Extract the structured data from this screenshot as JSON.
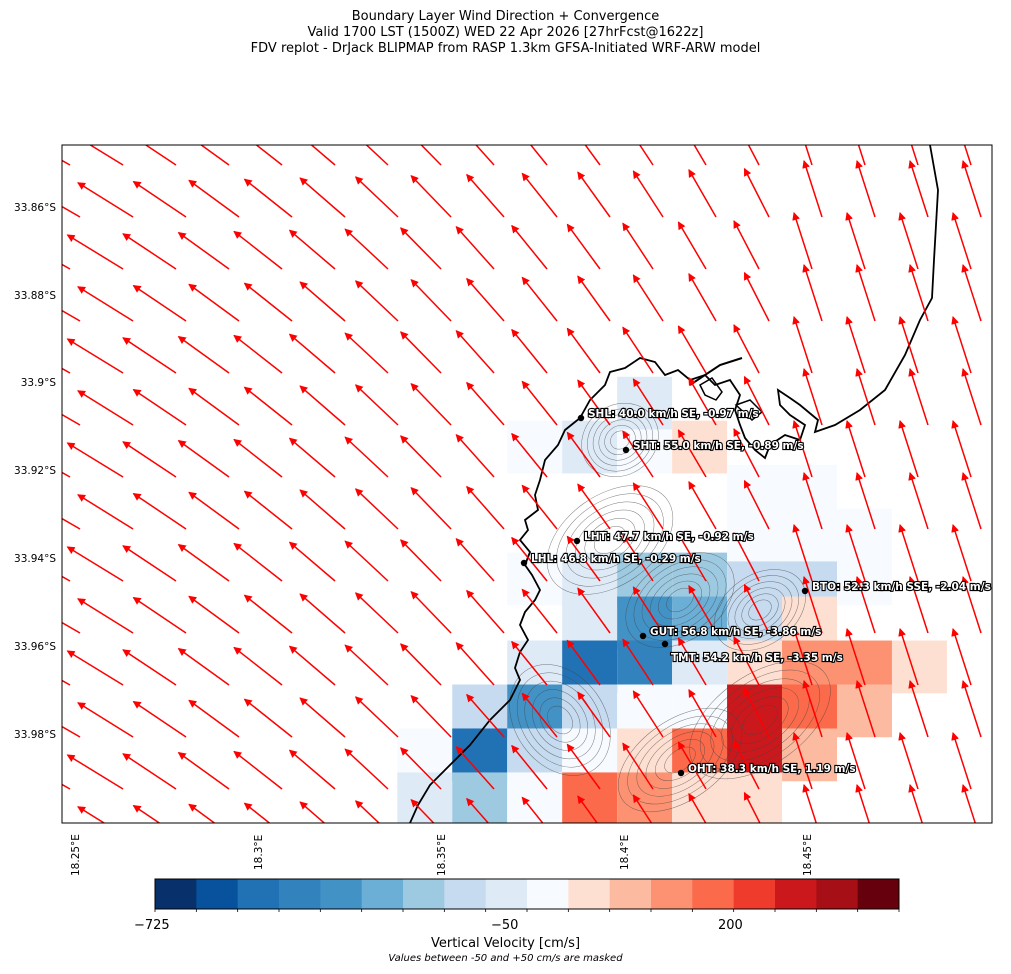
{
  "title": {
    "line1": "Boundary Layer Wind Direction + Convergence",
    "line2": "Valid 1700 LST (1500Z) WED 22 Apr 2026 [27hrFcst@1622z]",
    "line3": "FDV replot - DrJack BLIPMAP from RASP 1.3km GFSA-Initiated WRF-ARW model"
  },
  "map": {
    "lat_labels": [
      "33.86°S",
      "33.88°S",
      "33.9°S",
      "33.92°S",
      "33.94°S",
      "33.96°S",
      "33.98°S"
    ],
    "lon_labels": [
      "18.25°E",
      "18.3°E",
      "18.35°E",
      "18.4°E",
      "18.45°E"
    ],
    "wind_vector_color": "#ff0000",
    "coastline_color": "#000000"
  },
  "stations": [
    {
      "code": "SHL",
      "label": "SHL: 40.0 km/h SE, -0.97 m/s"
    },
    {
      "code": "SHT",
      "label": "SHT: 55.0 km/h SE, -0.89 m/s"
    },
    {
      "code": "LHT",
      "label": "LHT: 47.7 km/h SE, -0.92 m/s"
    },
    {
      "code": "LHL",
      "label": "LHL: 46.8 km/h SE, -0.29 m/s"
    },
    {
      "code": "BTO",
      "label": "BTO: 52.3 km/h SSE, -2.04 m/s"
    },
    {
      "code": "GUT",
      "label": "GUT: 56.8 km/h SE, -3.86 m/s"
    },
    {
      "code": "TMT",
      "label": "TMT: 54.2 km/h SE, -3.35 m/s"
    },
    {
      "code": "OHT",
      "label": "OHT: 38.3 km/h SE, 1.19 m/s"
    }
  ],
  "colorbar": {
    "tick_left": "−725",
    "tick_mid": "−50",
    "tick_right": "200",
    "label": "Vertical Velocity [cm/s]",
    "note": "Values between -50 and +50 cm/s are masked",
    "colors": [
      "#08306b",
      "#08519c",
      "#2171b5",
      "#3182bd",
      "#4292c6",
      "#6baed6",
      "#9ecae1",
      "#c6dbef",
      "#deebf7",
      "#f7fbff",
      "#fee0d2",
      "#fcbba1",
      "#fc9272",
      "#fb6a4a",
      "#ef3b2c",
      "#cb181d",
      "#a50f15",
      "#67000d"
    ]
  },
  "velocity_cells": [
    {
      "lon": 18.375,
      "lat": -33.915,
      "v": -60
    },
    {
      "lon": 18.39,
      "lat": -33.915,
      "v": -120
    },
    {
      "lon": 18.405,
      "lat": -33.915,
      "v": -80
    },
    {
      "lon": 18.42,
      "lat": -33.915,
      "v": 60
    },
    {
      "lon": 18.405,
      "lat": -33.905,
      "v": -120
    },
    {
      "lon": 18.375,
      "lat": -33.945,
      "v": -60
    },
    {
      "lon": 18.39,
      "lat": -33.945,
      "v": -120
    },
    {
      "lon": 18.405,
      "lat": -33.945,
      "v": -300
    },
    {
      "lon": 18.42,
      "lat": -33.945,
      "v": -300
    },
    {
      "lon": 18.435,
      "lat": -33.945,
      "v": -250
    },
    {
      "lon": 18.45,
      "lat": -33.945,
      "v": -220
    },
    {
      "lon": 18.465,
      "lat": -33.945,
      "v": -100
    },
    {
      "lon": 18.435,
      "lat": -33.935,
      "v": -80
    },
    {
      "lon": 18.45,
      "lat": -33.935,
      "v": -100
    },
    {
      "lon": 18.465,
      "lat": -33.935,
      "v": -60
    },
    {
      "lon": 18.435,
      "lat": -33.925,
      "v": -60
    },
    {
      "lon": 18.45,
      "lat": -33.925,
      "v": -80
    },
    {
      "lon": 18.39,
      "lat": -33.955,
      "v": -150
    },
    {
      "lon": 18.405,
      "lat": -33.955,
      "v": -450
    },
    {
      "lon": 18.42,
      "lat": -33.955,
      "v": -380
    },
    {
      "lon": 18.435,
      "lat": -33.955,
      "v": -200
    },
    {
      "lon": 18.45,
      "lat": -33.955,
      "v": 60
    },
    {
      "lon": 18.375,
      "lat": -33.965,
      "v": -150
    },
    {
      "lon": 18.39,
      "lat": -33.965,
      "v": -550
    },
    {
      "lon": 18.405,
      "lat": -33.965,
      "v": -500
    },
    {
      "lon": 18.42,
      "lat": -33.965,
      "v": -120
    },
    {
      "lon": 18.435,
      "lat": -33.965,
      "v": 60
    },
    {
      "lon": 18.45,
      "lat": -33.965,
      "v": 160
    },
    {
      "lon": 18.465,
      "lat": -33.965,
      "v": 130
    },
    {
      "lon": 18.48,
      "lat": -33.965,
      "v": 60
    },
    {
      "lon": 18.36,
      "lat": -33.975,
      "v": -200
    },
    {
      "lon": 18.375,
      "lat": -33.975,
      "v": -450
    },
    {
      "lon": 18.39,
      "lat": -33.975,
      "v": -250
    },
    {
      "lon": 18.405,
      "lat": -33.975,
      "v": -80
    },
    {
      "lon": 18.42,
      "lat": -33.975,
      "v": -60
    },
    {
      "lon": 18.435,
      "lat": -33.975,
      "v": 240
    },
    {
      "lon": 18.45,
      "lat": -33.975,
      "v": 190
    },
    {
      "lon": 18.465,
      "lat": -33.975,
      "v": 100
    },
    {
      "lon": 18.345,
      "lat": -33.985,
      "v": -100
    },
    {
      "lon": 18.36,
      "lat": -33.985,
      "v": -550
    },
    {
      "lon": 18.375,
      "lat": -33.985,
      "v": -250
    },
    {
      "lon": 18.39,
      "lat": -33.985,
      "v": -80
    },
    {
      "lon": 18.405,
      "lat": -33.985,
      "v": 60
    },
    {
      "lon": 18.42,
      "lat": -33.985,
      "v": 170
    },
    {
      "lon": 18.435,
      "lat": -33.985,
      "v": 240
    },
    {
      "lon": 18.45,
      "lat": -33.985,
      "v": 100
    },
    {
      "lon": 18.345,
      "lat": -33.995,
      "v": -150
    },
    {
      "lon": 18.36,
      "lat": -33.995,
      "v": -300
    },
    {
      "lon": 18.375,
      "lat": -33.995,
      "v": -80
    },
    {
      "lon": 18.39,
      "lat": -33.995,
      "v": 180
    },
    {
      "lon": 18.405,
      "lat": -33.995,
      "v": 130
    },
    {
      "lon": 18.42,
      "lat": -33.995,
      "v": 80
    },
    {
      "lon": 18.435,
      "lat": -33.995,
      "v": 70
    }
  ]
}
